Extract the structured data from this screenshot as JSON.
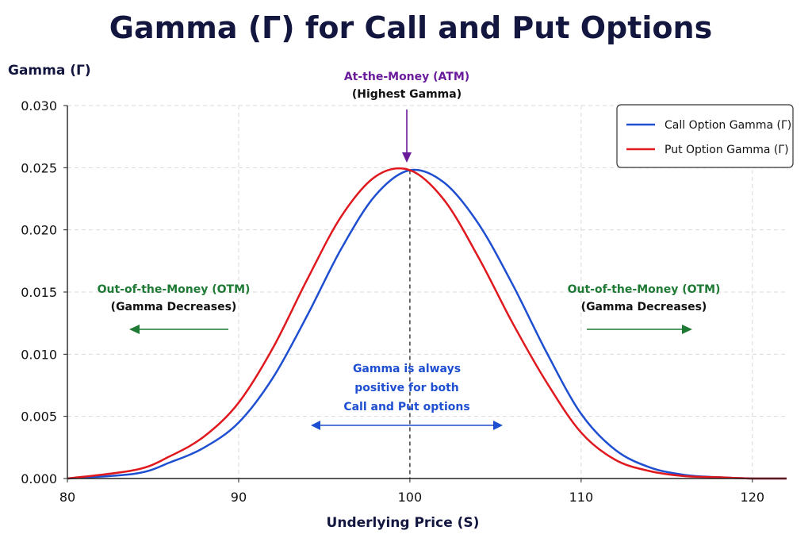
{
  "chart_data": {
    "type": "line",
    "title": "Gamma (Γ) for Call and Put Options",
    "xlabel": "Underlying Price (S)",
    "ylabel": "Gamma (Γ)",
    "xlim": [
      80,
      122
    ],
    "ylim": [
      0,
      0.03
    ],
    "xticks": [
      80,
      90,
      100,
      110,
      120
    ],
    "yticks": [
      0.0,
      0.005,
      0.01,
      0.015,
      0.02,
      0.025,
      0.03
    ],
    "ytick_labels": [
      "0.000",
      "0.005",
      "0.010",
      "0.015",
      "0.020",
      "0.025",
      "0.030"
    ],
    "grid": true,
    "legend": "top-right",
    "series": [
      {
        "name": "Call Option Gamma (Γ)",
        "color": "#1f4fd1",
        "x": [
          80,
          84,
          86,
          88,
          90,
          92,
          94,
          96,
          98,
          100,
          102,
          104,
          106,
          108,
          110,
          112,
          114,
          116,
          118,
          120,
          122
        ],
        "values": [
          0.0,
          0.0004,
          0.0013,
          0.0025,
          0.0045,
          0.0081,
          0.0131,
          0.0185,
          0.0228,
          0.0248,
          0.0238,
          0.0205,
          0.0156,
          0.0101,
          0.0052,
          0.0023,
          0.0009,
          0.0003,
          0.0001,
          0.0,
          0.0
        ]
      },
      {
        "name": "Put Option Gamma (Γ)",
        "color": "#e0191f",
        "x": [
          80,
          84,
          86,
          88,
          90,
          92,
          94,
          96,
          98,
          100,
          102,
          104,
          106,
          108,
          110,
          112,
          114,
          116,
          118,
          120,
          122
        ],
        "values": [
          0.0,
          0.0007,
          0.0018,
          0.0034,
          0.0061,
          0.0105,
          0.016,
          0.0211,
          0.0243,
          0.0248,
          0.0224,
          0.0178,
          0.0125,
          0.0077,
          0.0037,
          0.0015,
          0.0006,
          0.0002,
          0.0001,
          0.0,
          0.0
        ]
      }
    ],
    "annotations": {
      "atm_title": "At-the-Money (ATM)",
      "atm_sub": "(Highest Gamma)",
      "otm_title": "Out-of-the-Money (OTM)",
      "otm_sub": "(Gamma Decreases)",
      "positive_line1": "Gamma is always",
      "positive_line2": "positive for both",
      "positive_line3": "Call and Put options"
    },
    "colors": {
      "title": "#13163f",
      "atm": "#6a1b9a",
      "otm": "#1e7a34",
      "positive": "#1f4fd1"
    }
  }
}
